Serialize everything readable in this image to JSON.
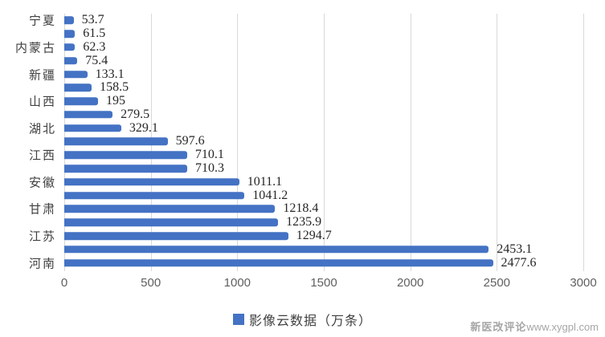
{
  "chart_data": {
    "type": "bar",
    "orientation": "horizontal",
    "title": "",
    "xlabel": "",
    "ylabel": "",
    "xlim": [
      0,
      3000
    ],
    "x_ticks": [
      0,
      500,
      1000,
      1500,
      2000,
      2500,
      3000
    ],
    "grid": true,
    "bar_color": "#4472C4",
    "legend": {
      "label": "影像云数据（万条）",
      "position": "bottom"
    },
    "categories": [
      "宁夏",
      "",
      "内蒙古",
      "",
      "新疆",
      "",
      "山西",
      "",
      "湖北",
      "",
      "江西",
      "",
      "安徽",
      "",
      "甘肃",
      "",
      "江苏",
      "",
      "河南"
    ],
    "values": [
      53.7,
      61.5,
      62.3,
      75.4,
      133.1,
      158.5,
      195,
      279.5,
      329.1,
      597.6,
      710.1,
      710.3,
      1011.1,
      1041.2,
      1218.4,
      1235.9,
      1294.7,
      2453.1,
      2477.6
    ],
    "value_labels": [
      "53.7",
      "61.5",
      "62.3",
      "75.4",
      "133.1",
      "158.5",
      "195",
      "279.5",
      "329.1",
      "597.6",
      "710.1",
      "710.3",
      "1011.1",
      "1041.2",
      "1218.4",
      "1235.9",
      "1294.7",
      "2453.1",
      "2477.6"
    ]
  },
  "watermark": {
    "brand": "新医改评论",
    "url": "www.xygpl.com"
  },
  "colors": {
    "bar": "#4472C4",
    "gridline": "#D9D9D9",
    "tick_label": "#5F5F5F",
    "value_label": "#262626",
    "category_label": "#404040",
    "legend_text": "#404040",
    "watermark": "#A6A6A6",
    "background": "#FFFFFF"
  }
}
